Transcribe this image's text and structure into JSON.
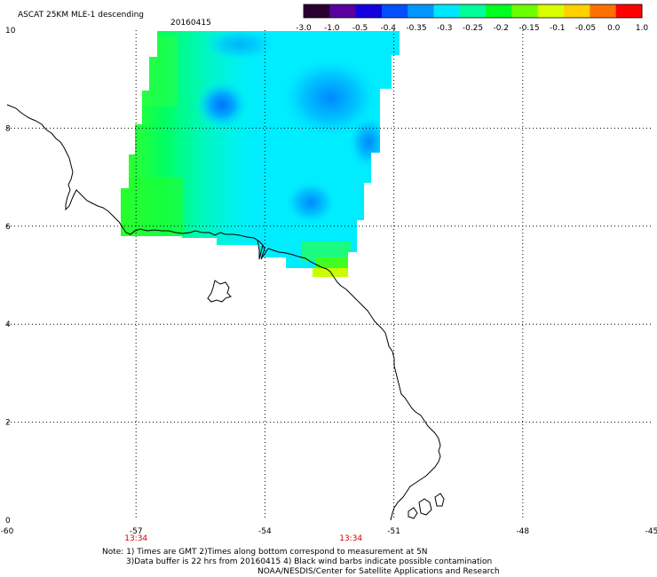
{
  "header": {
    "title": "ASCAT 25KM MLE-1 descending",
    "date": "20160415"
  },
  "colorbar": {
    "ticks": [
      "-3.0",
      "-1.0",
      "-0.5",
      "-0.4",
      "-0.35",
      "-0.3",
      "-0.25",
      "-0.2",
      "-0.15",
      "-0.1",
      "-0.05",
      "0.0",
      "1.0"
    ],
    "colors": [
      "#2a0030",
      "#5a00a0",
      "#1500e0",
      "#0050ff",
      "#0096ff",
      "#00e6ff",
      "#00ff9a",
      "#00ff20",
      "#6cff00",
      "#d8ff00",
      "#ffd000",
      "#ff7000",
      "#ff0000"
    ]
  },
  "map": {
    "x_ticks": [
      "-60",
      "-57",
      "-54",
      "-51",
      "-48",
      "-45"
    ],
    "y_ticks": [
      "0",
      "2",
      "4",
      "6",
      "8",
      "10"
    ],
    "lon_range": [
      -60,
      -45
    ],
    "lat_range": [
      0,
      10
    ],
    "pass_times": [
      "13:34",
      "13:34"
    ],
    "pass_time_lons": [
      -57,
      -52
    ]
  },
  "notes": {
    "line1": "Note: 1) Times are GMT 2)Times along bottom correspond to measurement at 5N",
    "line2": "3)Data buffer is 22 hrs from 20160415 4) Black wind barbs indicate possible contamination",
    "line3": "NOAA/NESDIS/Center for Satellite Applications and Research"
  }
}
